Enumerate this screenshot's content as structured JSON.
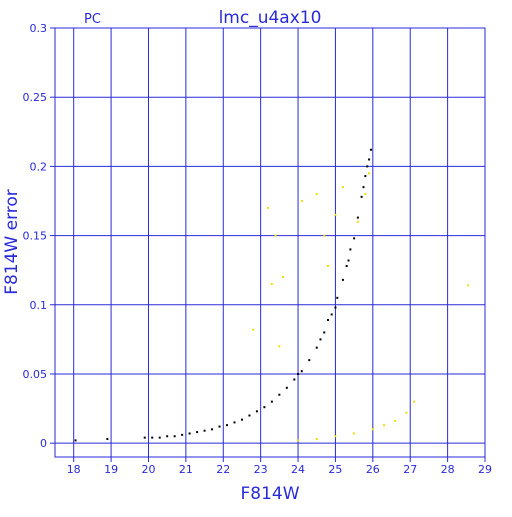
{
  "chart_data": {
    "type": "scatter",
    "title": "lmc_u4ax10",
    "corner_label": "PC",
    "xlabel": "F814W",
    "ylabel": "F814W error",
    "xlim": [
      17.5,
      29
    ],
    "ylim": [
      -0.01,
      0.3
    ],
    "xticks": [
      "18",
      "19",
      "20",
      "21",
      "22",
      "23",
      "24",
      "25",
      "26",
      "27",
      "28",
      "29"
    ],
    "yticks": [
      "0",
      "0.05",
      "0.1",
      "0.15",
      "0.2",
      "0.25",
      "0.3"
    ],
    "grid": true,
    "colors": {
      "axes": "#2a2ad8",
      "grid": "#2a2ad8",
      "series_main": "#000000",
      "series_secondary": "#f0e000"
    },
    "series": [
      {
        "role": "main",
        "points": [
          [
            18.05,
            0.002
          ],
          [
            18.9,
            0.003
          ],
          [
            19.9,
            0.004
          ],
          [
            20.1,
            0.004
          ],
          [
            20.3,
            0.004
          ],
          [
            20.5,
            0.005
          ],
          [
            20.7,
            0.005
          ],
          [
            20.9,
            0.006
          ],
          [
            21.1,
            0.007
          ],
          [
            21.3,
            0.008
          ],
          [
            21.5,
            0.009
          ],
          [
            21.7,
            0.01
          ],
          [
            21.9,
            0.012
          ],
          [
            22.1,
            0.013
          ],
          [
            22.3,
            0.015
          ],
          [
            22.5,
            0.017
          ],
          [
            22.7,
            0.02
          ],
          [
            22.9,
            0.023
          ],
          [
            23.1,
            0.026
          ],
          [
            23.3,
            0.03
          ],
          [
            23.5,
            0.035
          ],
          [
            23.7,
            0.04
          ],
          [
            23.9,
            0.046
          ],
          [
            24.1,
            0.052
          ],
          [
            24.3,
            0.06
          ],
          [
            24.5,
            0.069
          ],
          [
            24.7,
            0.08
          ],
          [
            24.9,
            0.093
          ],
          [
            25.05,
            0.105
          ],
          [
            25.2,
            0.118
          ],
          [
            25.35,
            0.132
          ],
          [
            25.5,
            0.148
          ],
          [
            25.6,
            0.163
          ],
          [
            25.7,
            0.178
          ],
          [
            25.8,
            0.193
          ],
          [
            25.9,
            0.205
          ],
          [
            25.95,
            0.212
          ],
          [
            24.0,
            0.05
          ],
          [
            24.6,
            0.075
          ],
          [
            25.0,
            0.098
          ],
          [
            25.4,
            0.14
          ],
          [
            25.75,
            0.185
          ],
          [
            25.85,
            0.2
          ],
          [
            24.8,
            0.089
          ],
          [
            25.3,
            0.128
          ]
        ]
      },
      {
        "role": "secondary",
        "points": [
          [
            24.0,
            0.002
          ],
          [
            24.5,
            0.003
          ],
          [
            25.0,
            0.005
          ],
          [
            25.5,
            0.007
          ],
          [
            26.0,
            0.01
          ],
          [
            26.3,
            0.013
          ],
          [
            26.6,
            0.016
          ],
          [
            26.9,
            0.022
          ],
          [
            27.1,
            0.03
          ],
          [
            28.55,
            0.114
          ],
          [
            23.2,
            0.17
          ],
          [
            23.4,
            0.15
          ],
          [
            24.1,
            0.175
          ],
          [
            24.5,
            0.18
          ],
          [
            23.3,
            0.115
          ],
          [
            23.6,
            0.12
          ],
          [
            22.8,
            0.082
          ],
          [
            24.7,
            0.15
          ],
          [
            25.0,
            0.165
          ],
          [
            25.6,
            0.16
          ],
          [
            25.8,
            0.18
          ],
          [
            23.5,
            0.07
          ],
          [
            24.8,
            0.128
          ],
          [
            25.2,
            0.185
          ],
          [
            25.9,
            0.195
          ]
        ]
      }
    ]
  }
}
